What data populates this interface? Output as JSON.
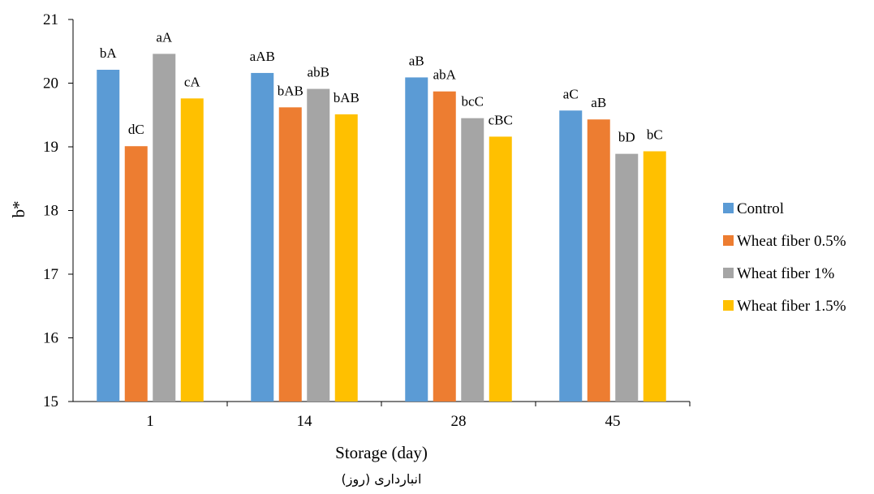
{
  "chart_data": {
    "type": "bar",
    "categories": [
      "1",
      "14",
      "28",
      "45"
    ],
    "xlabel": "Storage (day)",
    "xlabel_secondary": "انبارداری (روز)",
    "ylabel": "b*",
    "ylim": [
      15,
      21
    ],
    "yticks": [
      "15",
      "16",
      "17",
      "18",
      "19",
      "20",
      "21"
    ],
    "grid": false,
    "legend_position": "right",
    "series": [
      {
        "name": "Control",
        "color": "#5B9BD5",
        "values": [
          20.21,
          20.16,
          20.09,
          19.57
        ],
        "labels": [
          "bA",
          "aAB",
          "aB",
          "aC"
        ]
      },
      {
        "name": "Wheat fiber 0.5%",
        "color": "#ED7D31",
        "values": [
          19.01,
          19.62,
          19.87,
          19.43
        ],
        "labels": [
          "dC",
          "bAB",
          "abA",
          "aB"
        ]
      },
      {
        "name": "Wheat fiber 1%",
        "color": "#A5A5A5",
        "values": [
          20.46,
          19.91,
          19.45,
          18.89
        ],
        "labels": [
          "aA",
          "abB",
          "bcC",
          "bD"
        ]
      },
      {
        "name": "Wheat fiber 1.5%",
        "color": "#FFC000",
        "values": [
          19.76,
          19.51,
          19.16,
          18.93
        ],
        "labels": [
          "cA",
          "bAB",
          "cBC",
          "bC"
        ]
      }
    ]
  }
}
